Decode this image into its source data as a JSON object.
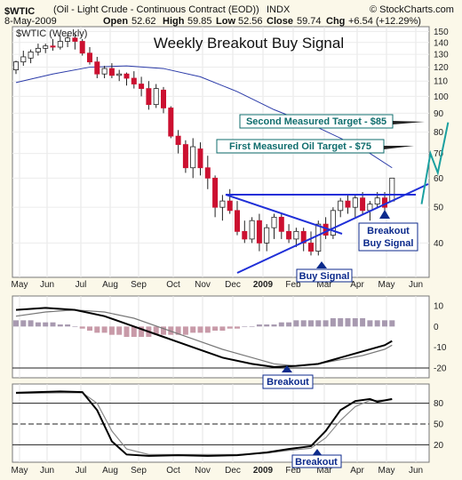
{
  "header": {
    "symbol": "$WTIC",
    "name": "(Oil - Light Crude - Continuous Contract (EOD))",
    "exchange": "INDX",
    "date": "8-May-2009",
    "open_label": "Open",
    "open": "52.62",
    "high_label": "High",
    "high": "59.85",
    "low_label": "Low",
    "low": "52.56",
    "close_label": "Close",
    "close": "59.74",
    "chg_label": "Chg",
    "chg": "+6.54 (+12.29%)",
    "copyright": "© StockCharts.com",
    "series_label": "$WTIC (Weekly)"
  },
  "colors": {
    "background": "#fbf8e9",
    "panel": "#ffffff",
    "up_candle": "#ffffff",
    "down_candle": "#cc1030",
    "candle_outline": "#222222",
    "moving_average": "#2a3aa8",
    "trendline": "#1f2fd8",
    "target_text": "#0f6d6d",
    "projection": "#1aa0a0",
    "annotation_blue": "#0c2a8c",
    "histogram": "#a89ab0",
    "histogram_negative": "#c89aa8"
  },
  "chart_data": [
    {
      "type": "candlestick",
      "title": "Weekly Breakout Buy Signal",
      "y_scale": "log",
      "ylim": [
        33,
        152
      ],
      "yticks": [
        40,
        50,
        60,
        70,
        80,
        90,
        100,
        110,
        120,
        130,
        140,
        150
      ],
      "x_labels": [
        "May",
        "Jun",
        "Jul",
        "Aug",
        "Sep",
        "Oct",
        "Nov",
        "Dec",
        "2009",
        "Feb",
        "Mar",
        "Apr",
        "May",
        "Jun"
      ],
      "candles": [
        [
          118,
          125,
          115,
          124
        ],
        [
          124,
          133,
          121,
          128
        ],
        [
          127,
          134,
          123,
          132
        ],
        [
          132,
          139,
          129,
          135
        ],
        [
          135,
          139,
          131,
          137
        ],
        [
          137,
          143,
          133,
          136
        ],
        [
          136,
          146,
          134,
          141
        ],
        [
          141,
          147,
          136,
          144
        ],
        [
          144,
          147,
          134,
          141
        ],
        [
          141,
          143,
          129,
          131
        ],
        [
          131,
          136,
          122,
          124
        ],
        [
          124,
          128,
          112,
          115
        ],
        [
          115,
          121,
          112,
          119
        ],
        [
          119,
          123,
          112,
          114
        ],
        [
          114,
          118,
          110,
          115
        ],
        [
          115,
          116,
          107,
          112
        ],
        [
          112,
          117,
          105,
          108
        ],
        [
          108,
          113,
          100,
          105
        ],
        [
          105,
          110,
          92,
          95
        ],
        [
          95,
          108,
          93,
          105
        ],
        [
          104,
          106,
          90,
          93
        ],
        [
          93,
          94,
          77,
          78
        ],
        [
          78,
          81,
          70,
          74
        ],
        [
          74,
          76,
          62,
          64
        ],
        [
          64,
          77,
          60,
          73
        ],
        [
          72,
          75,
          61,
          64
        ],
        [
          64,
          69,
          56,
          60
        ],
        [
          60,
          61,
          47,
          50
        ],
        [
          50,
          54,
          46,
          52
        ],
        [
          52,
          56,
          48,
          49
        ],
        [
          49,
          52,
          42,
          43
        ],
        [
          43,
          46,
          40,
          41
        ],
        [
          41,
          47,
          40,
          46
        ],
        [
          46,
          48,
          38,
          40
        ],
        [
          40,
          45,
          38,
          44
        ],
        [
          44,
          48,
          41,
          47
        ],
        [
          47,
          48,
          41,
          43
        ],
        [
          43,
          45,
          40,
          41
        ],
        [
          41,
          44,
          39,
          43
        ],
        [
          43,
          44,
          38,
          40
        ],
        [
          40,
          43,
          37,
          38
        ],
        [
          38,
          46,
          37,
          45
        ],
        [
          45,
          47,
          41,
          42
        ],
        [
          42,
          50,
          41,
          49
        ],
        [
          49,
          53,
          47,
          52
        ],
        [
          52,
          54,
          48,
          50
        ],
        [
          50,
          54,
          47,
          53
        ],
        [
          53,
          55,
          48,
          49
        ],
        [
          49,
          52,
          46,
          51
        ],
        [
          51,
          55,
          50,
          53
        ],
        [
          53,
          55,
          48,
          50
        ],
        [
          52,
          60,
          52,
          60
        ]
      ],
      "moving_average": [
        [
          0,
          109
        ],
        [
          5,
          115
        ],
        [
          10,
          120
        ],
        [
          15,
          121
        ],
        [
          20,
          119
        ],
        [
          25,
          113
        ],
        [
          30,
          103
        ],
        [
          35,
          92
        ],
        [
          40,
          84
        ],
        [
          44,
          77
        ],
        [
          48,
          70
        ],
        [
          51,
          64
        ]
      ],
      "projection_path": [
        [
          55.0,
          51
        ],
        [
          56.2,
          70
        ],
        [
          57.2,
          62
        ],
        [
          58.6,
          85
        ]
      ],
      "annotations": {
        "second_target": "Second Measured Target - $85",
        "first_target": "First Measured Oil Target - $75",
        "breakout": "Breakout",
        "buy_signal_label": "Buy Signal",
        "breakout_buy_signal_line2": "Buy Signal",
        "buy_signal": "Buy Signal"
      }
    },
    {
      "type": "macd",
      "ylim": [
        -23,
        13
      ],
      "yticks": [
        10,
        0,
        -10,
        -20
      ],
      "macd_line": [
        [
          0,
          8
        ],
        [
          4,
          9
        ],
        [
          8,
          8
        ],
        [
          12,
          5
        ],
        [
          16,
          0
        ],
        [
          20,
          -5
        ],
        [
          24,
          -10
        ],
        [
          28,
          -15
        ],
        [
          32,
          -18
        ],
        [
          35,
          -19.5
        ],
        [
          38,
          -19
        ],
        [
          41,
          -18
        ],
        [
          44,
          -15
        ],
        [
          47,
          -12
        ],
        [
          50,
          -9
        ],
        [
          51,
          -7
        ]
      ],
      "signal_line": [
        [
          0,
          5
        ],
        [
          4,
          7
        ],
        [
          8,
          8
        ],
        [
          12,
          7
        ],
        [
          16,
          4
        ],
        [
          20,
          -1
        ],
        [
          24,
          -6
        ],
        [
          28,
          -11
        ],
        [
          32,
          -15
        ],
        [
          35,
          -18
        ],
        [
          38,
          -19
        ],
        [
          41,
          -18
        ],
        [
          44,
          -16
        ],
        [
          47,
          -14
        ],
        [
          50,
          -11
        ],
        [
          51,
          -9
        ]
      ],
      "histogram": [
        3,
        3,
        3,
        2,
        2,
        2,
        1,
        1,
        0,
        -1,
        -2,
        -3,
        -3,
        -4,
        -4,
        -5,
        -5,
        -5,
        -5,
        -4,
        -4,
        -4,
        -4,
        -4,
        -3,
        -3,
        -3,
        -2,
        -2,
        -1,
        -1,
        0,
        0,
        1,
        1,
        1,
        2,
        2,
        3,
        3,
        3,
        3,
        3,
        4,
        4,
        4,
        4,
        4,
        3,
        3,
        3,
        3
      ]
    },
    {
      "type": "stochastic",
      "ylim": [
        0,
        100
      ],
      "yticks": [
        80,
        50,
        20
      ],
      "x_labels": [
        "May",
        "Jun",
        "Jul",
        "Aug",
        "Sep",
        "Oct",
        "Nov",
        "Dec",
        "2009",
        "Feb",
        "Mar",
        "Apr",
        "May",
        "Jun"
      ],
      "fast_line": [
        [
          0,
          95
        ],
        [
          6,
          97
        ],
        [
          9,
          96
        ],
        [
          11,
          70
        ],
        [
          13,
          25
        ],
        [
          15,
          6
        ],
        [
          18,
          4
        ],
        [
          22,
          5
        ],
        [
          26,
          4
        ],
        [
          30,
          5
        ],
        [
          34,
          9
        ],
        [
          37,
          14
        ],
        [
          40,
          18
        ],
        [
          42,
          40
        ],
        [
          44,
          70
        ],
        [
          46,
          83
        ],
        [
          48,
          86
        ],
        [
          49,
          82
        ],
        [
          51,
          86
        ]
      ],
      "slow_line": [
        [
          0,
          94
        ],
        [
          6,
          95
        ],
        [
          9,
          95
        ],
        [
          11,
          80
        ],
        [
          13,
          40
        ],
        [
          15,
          14
        ],
        [
          18,
          6
        ],
        [
          22,
          6
        ],
        [
          26,
          6
        ],
        [
          30,
          6
        ],
        [
          34,
          8
        ],
        [
          37,
          12
        ],
        [
          40,
          15
        ],
        [
          42,
          30
        ],
        [
          44,
          55
        ],
        [
          46,
          75
        ],
        [
          48,
          84
        ],
        [
          49,
          84
        ],
        [
          51,
          85
        ]
      ],
      "annotations": {
        "breakout": "Breakout"
      }
    }
  ]
}
